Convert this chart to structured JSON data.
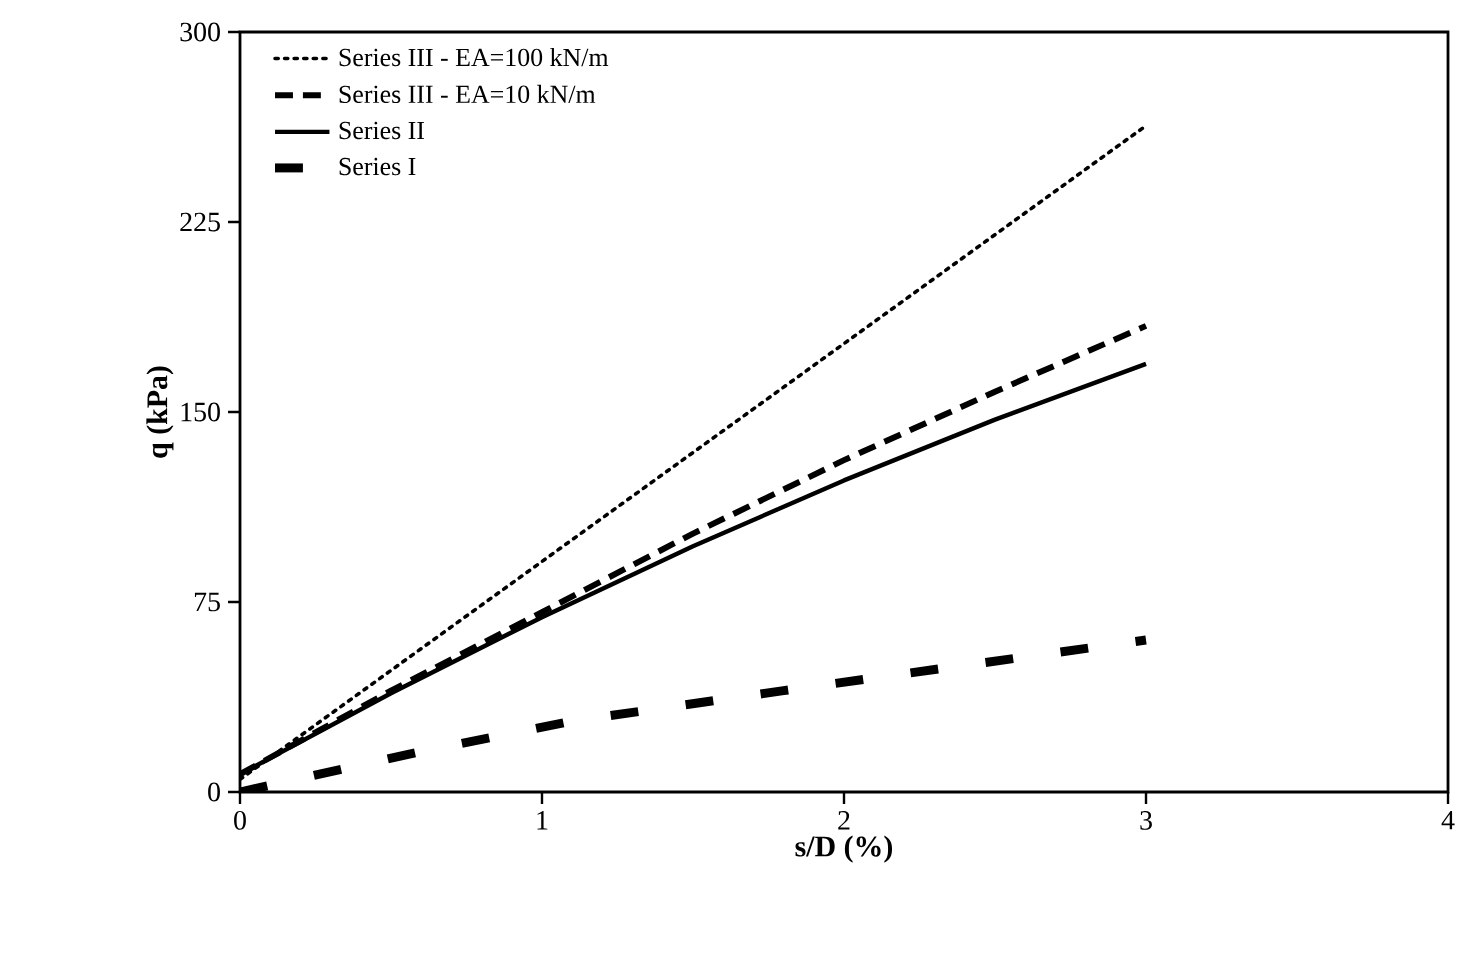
{
  "chart_data": {
    "type": "line",
    "xlabel": "s/D (%)",
    "ylabel": "q (kPa)",
    "xlim": [
      0,
      4
    ],
    "xticks": [
      0,
      1,
      2,
      3,
      4
    ],
    "ylim": [
      0,
      300
    ],
    "yticks": [
      0,
      75,
      150,
      225,
      300
    ],
    "legend": "top left",
    "grid": false,
    "marker": "none",
    "series": [
      {
        "name": "Series III - EA=100 kN/m",
        "color": "#000000",
        "line_style": "dotted",
        "x": [
          0,
          1,
          2,
          3
        ],
        "values": [
          5,
          91,
          177,
          263
        ]
      },
      {
        "name": "Series III - EA=10 kN/m",
        "color": "#000000",
        "line_style": "dashed",
        "x": [
          0,
          0.5,
          1,
          1.5,
          2,
          2.5,
          3
        ],
        "values": [
          7,
          40,
          71,
          102,
          131,
          158,
          184
        ]
      },
      {
        "name": "Series II",
        "color": "#000000",
        "line_style": "solid",
        "x": [
          0,
          0.5,
          1,
          1.5,
          2,
          2.5,
          3
        ],
        "values": [
          7,
          39,
          69,
          97,
          123,
          147,
          169
        ]
      },
      {
        "name": "Series I",
        "color": "#000000",
        "line_style": "dashed",
        "x": [
          0,
          0.6,
          1.1,
          1.8,
          2.4,
          3
        ],
        "values": [
          0,
          16,
          28,
          40,
          50,
          60
        ]
      }
    ]
  }
}
